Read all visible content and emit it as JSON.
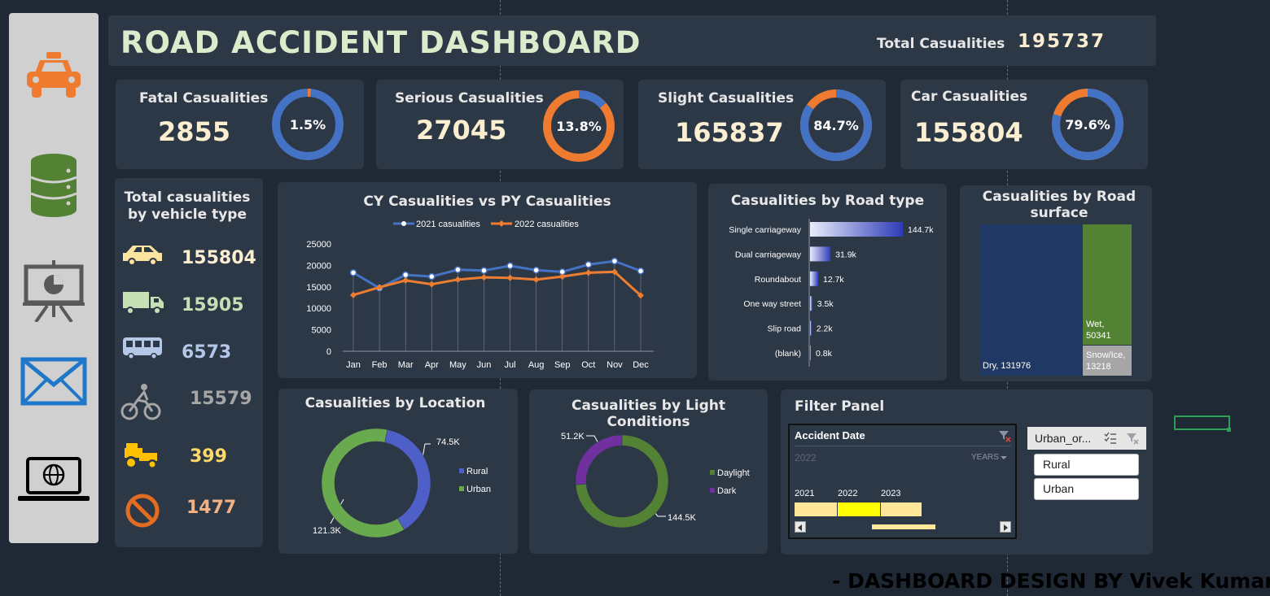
{
  "header": {
    "title": "ROAD ACCIDENT DASHBOARD",
    "total_label": "Total Casualities",
    "total_value": "195737"
  },
  "sidebar": {
    "items": [
      "car-icon",
      "database-icon",
      "presentation-icon",
      "mail-icon",
      "laptop-globe-icon"
    ]
  },
  "kpis": [
    {
      "label": "Fatal Casualities",
      "value": "2855",
      "pct_text": "1.5%",
      "pct": 0.015
    },
    {
      "label": "Serious Casualities",
      "value": "27045",
      "pct_text": "13.8%",
      "pct": 0.138
    },
    {
      "label": "Slight Casualities",
      "value": "165837",
      "pct_text": "84.7%",
      "pct": 0.847
    },
    {
      "label": "Car Casualities",
      "value": "155804",
      "pct_text": "79.6%",
      "pct": 0.796
    }
  ],
  "colors": {
    "orange": "#ee7b30",
    "blue": "#4472c4",
    "green": "#548235",
    "navy": "#203864",
    "purple": "#7030a0",
    "yellow": "#ffff00",
    "light_yellow": "#ffe699"
  },
  "vehicles": {
    "title": "Total casualities by vehicle type",
    "items": [
      {
        "icon": "car-icon",
        "value": "155804",
        "color": "#fbeed1"
      },
      {
        "icon": "truck-icon",
        "value": "15905",
        "color": "#c5e0b4"
      },
      {
        "icon": "bus-icon",
        "value": "6573",
        "color": "#b4c7e7"
      },
      {
        "icon": "bicycle-icon",
        "value": "15579",
        "color": "#a6a6a6"
      },
      {
        "icon": "tractor-icon",
        "value": "399",
        "color": "#ffd966"
      },
      {
        "icon": "no-entry-icon",
        "value": "1477",
        "color": "#f4b183"
      }
    ]
  },
  "trend": {
    "title": "CY Casualities vs PY Casualities",
    "series_2021": "2021 casualities",
    "series_2022": "2022 casualities"
  },
  "road_type": {
    "title": "Casualities by Road type"
  },
  "surface": {
    "title": "Casualities by Road surface"
  },
  "location": {
    "title": "Casualities by Location"
  },
  "light": {
    "title": "Casualities by Light Conditions"
  },
  "chart_data": [
    {
      "type": "line",
      "title": "CY Casualities vs PY Casualities",
      "categories": [
        "Jan",
        "Feb",
        "Mar",
        "Apr",
        "May",
        "Jun",
        "Jul",
        "Aug",
        "Sep",
        "Oct",
        "Nov",
        "Dec"
      ],
      "ylim": [
        0,
        25000
      ],
      "yticks": [
        "25000",
        "20000",
        "15000",
        "10000",
        "5000",
        "0"
      ],
      "legend": "top",
      "series": [
        {
          "name": "2021 casualities",
          "color": "#4472c4",
          "values": [
            18300,
            14700,
            17800,
            17400,
            19000,
            18800,
            19900,
            18900,
            18500,
            20200,
            21000,
            18700
          ]
        },
        {
          "name": "2022 casualities",
          "color": "#ed7d31",
          "values": [
            13100,
            14900,
            16500,
            15600,
            16700,
            17200,
            17100,
            16700,
            17400,
            18300,
            18500,
            13000
          ]
        }
      ]
    },
    {
      "type": "bar",
      "title": "Casualities by Road type",
      "categories": [
        "Single carriageway",
        "Dual carriageway",
        "Roundabout",
        "One way street",
        "Slip road",
        "(blank)"
      ],
      "values": [
        144.7,
        31.9,
        12.7,
        3.5,
        2.2,
        0.8
      ],
      "labels": [
        "144.7k",
        "31.9k",
        "12.7k",
        "3.5k",
        "2.2k",
        "0.8k"
      ]
    },
    {
      "type": "heatmap",
      "title": "Casualities by Road surface",
      "items": [
        {
          "name": "Dry",
          "value": 131976,
          "label": "Dry, 131976",
          "color": "#203864"
        },
        {
          "name": "Wet",
          "value": 50341,
          "label_name": "Wet,",
          "label_value": "50341",
          "color": "#548235"
        },
        {
          "name": "Snow/Ice",
          "value": 13218,
          "label_name": "Snow/Ice,",
          "label_value": "13218",
          "color": "#a6a6a6"
        }
      ]
    },
    {
      "type": "pie",
      "title": "Casualities by Location",
      "slices": [
        {
          "name": "Rural",
          "value": 74.5,
          "label": "74.5K",
          "color": "#4e5fc7"
        },
        {
          "name": "Urban",
          "value": 121.3,
          "label": "121.3K",
          "color": "#6aaa4e"
        }
      ]
    },
    {
      "type": "pie",
      "title": "Casualities by Light Conditions",
      "slices": [
        {
          "name": "Daylight",
          "value": 144.5,
          "label": "144.5K",
          "color": "#548235"
        },
        {
          "name": "Dark",
          "value": 51.2,
          "label": "51.2K",
          "color": "#7030a0"
        }
      ]
    }
  ],
  "filter": {
    "title": "Filter Panel",
    "date_header": "Accident Date",
    "selected_year": "2022",
    "period_label": "YEARS",
    "years": [
      "2021",
      "2022",
      "2023"
    ],
    "urban_header": "Urban_or...",
    "urban_options": [
      "Rural",
      "Urban"
    ]
  },
  "footer": {
    "credit": "- DASHBOARD DESIGN BY Vivek Kumar"
  }
}
